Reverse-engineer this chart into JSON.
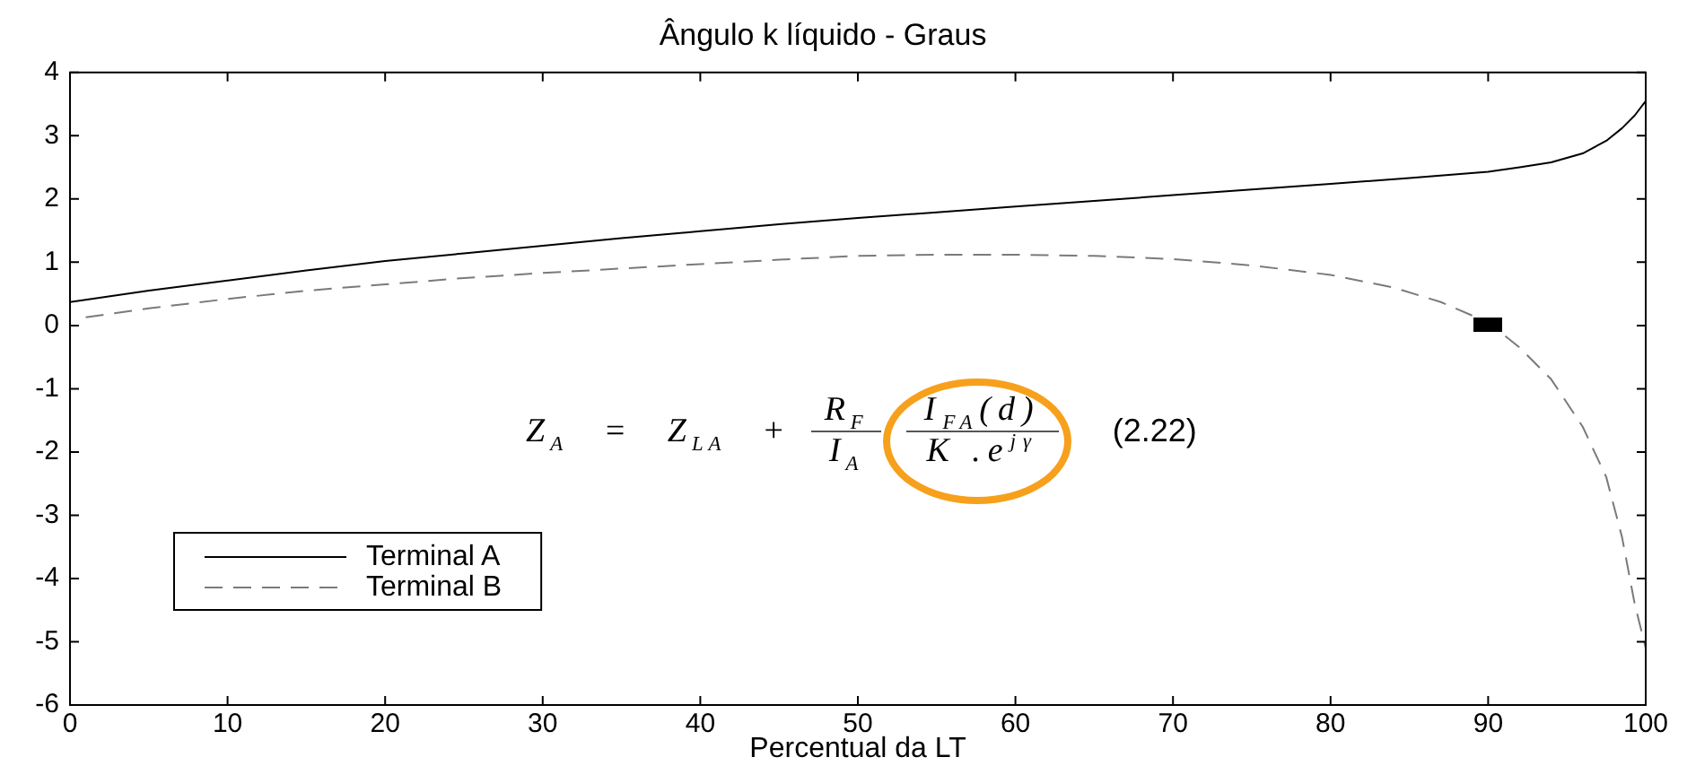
{
  "chart_data": {
    "type": "line",
    "title": "Ângulo k líquido - Graus",
    "xlabel": "Percentual da LT",
    "series": [
      {
        "name": "Terminal A",
        "color": "#000000",
        "line_style": "solid",
        "x": [
          0,
          5,
          10,
          15,
          20,
          25,
          30,
          35,
          40,
          45,
          50,
          55,
          60,
          65,
          70,
          75,
          80,
          85,
          90,
          92,
          94,
          96,
          97.5,
          98.5,
          99.3,
          100
        ],
        "values": [
          0.37,
          0.55,
          0.71,
          0.87,
          1.02,
          1.14,
          1.26,
          1.38,
          1.49,
          1.6,
          1.7,
          1.79,
          1.88,
          1.97,
          2.06,
          2.15,
          2.24,
          2.33,
          2.43,
          2.5,
          2.58,
          2.72,
          2.92,
          3.12,
          3.32,
          3.55
        ]
      },
      {
        "name": "Terminal B",
        "color": "#7a7a7a",
        "line_style": "dashed",
        "x": [
          1,
          5,
          10,
          15,
          20,
          25,
          30,
          35,
          40,
          45,
          50,
          55,
          60,
          65,
          70,
          75,
          80,
          84,
          87,
          90,
          92,
          94,
          96,
          97.5,
          98.5,
          99.3,
          100
        ],
        "values": [
          0.13,
          0.27,
          0.42,
          0.55,
          0.65,
          0.75,
          0.83,
          0.9,
          0.97,
          1.04,
          1.1,
          1.12,
          1.12,
          1.1,
          1.05,
          0.95,
          0.8,
          0.6,
          0.37,
          0.05,
          -0.35,
          -0.85,
          -1.6,
          -2.4,
          -3.35,
          -4.4,
          -5.1
        ]
      }
    ],
    "xlim": [
      0,
      100
    ],
    "xticks": [
      0,
      10,
      20,
      30,
      40,
      50,
      60,
      70,
      80,
      90,
      100
    ],
    "ylim": [
      -6,
      4
    ],
    "yticks": [
      -6,
      -5,
      -4,
      -3,
      -2,
      -1,
      0,
      1,
      2,
      3,
      4
    ],
    "legend": "bottom left",
    "annotations": [
      "Z$_{A}$ = Z$_{LA}$ +",
      "R$_{F}$",
      "I$_{A}$",
      "I$_{FA}$(d)",
      "K .e$^{jγ}$",
      "(2.22)"
    ]
  }
}
